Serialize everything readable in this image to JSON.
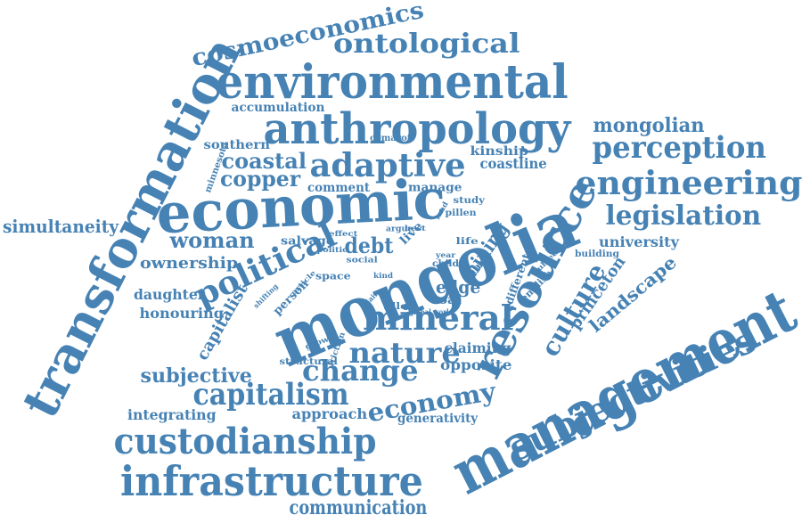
{
  "cloud": {
    "color": "#4682b4",
    "words": [
      "mongolia",
      "management",
      "economic",
      "transformation",
      "environmental",
      "anthropology",
      "resource",
      "infrastructure",
      "custodianship",
      "subjectivities",
      "mineral",
      "political",
      "adaptive",
      "engineering",
      "perception",
      "capitalism",
      "change",
      "nature",
      "legislation",
      "ontological",
      "cosmoeconomics",
      "economy",
      "culture",
      "communication",
      "landscape",
      "mongolian",
      "copper",
      "coastal",
      "woman",
      "subjective",
      "simultaneity",
      "ownership",
      "debt",
      "mining",
      "capitalist",
      "princeton",
      "university",
      "coastline",
      "edge",
      "honouring",
      "integrating",
      "approach",
      "daughter",
      "opposite",
      "claiming",
      "generativity",
      "accumulation",
      "southern",
      "kinship",
      "comment",
      "manage",
      "salvage",
      "coal",
      "person",
      "minnesota",
      "different",
      "sharp",
      "english",
      "live",
      "study",
      "pillen",
      "structural",
      "growth",
      "friction",
      "space",
      "building",
      "comaroff",
      "child",
      "life",
      "social",
      "filled",
      "global world",
      "effect",
      "politic",
      "argue",
      "best",
      "land",
      "shifting",
      "article",
      "kind",
      "claim",
      "subject",
      "year"
    ]
  }
}
